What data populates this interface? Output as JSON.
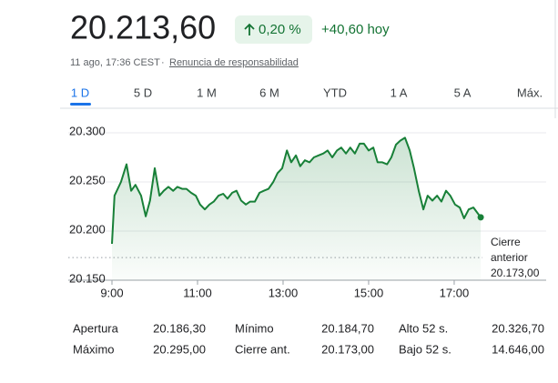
{
  "header": {
    "price": "20.213,60",
    "change_percent": "0,20 %",
    "change_today": "+40,60 hoy",
    "timestamp": "11 ago, 17:36 CEST",
    "separator": "·",
    "disclaimer": "Renuncia de responsabilidad"
  },
  "tabs": [
    "1 D",
    "5 D",
    "1 M",
    "6 M",
    "YTD",
    "1 A",
    "5 A",
    "Máx."
  ],
  "chart_data": {
    "type": "line",
    "color": "#188038",
    "x": [
      9.0,
      9.06,
      9.21,
      9.34,
      9.45,
      9.55,
      9.68,
      9.79,
      9.89,
      10.0,
      10.11,
      10.21,
      10.32,
      10.43,
      10.53,
      10.64,
      10.74,
      10.85,
      10.96,
      11.06,
      11.17,
      11.28,
      11.38,
      11.49,
      11.6,
      11.7,
      11.81,
      11.91,
      12.02,
      12.13,
      12.23,
      12.34,
      12.45,
      12.55,
      12.66,
      12.77,
      12.87,
      12.98,
      13.09,
      13.19,
      13.3,
      13.4,
      13.51,
      13.62,
      13.72,
      13.83,
      13.94,
      14.04,
      14.15,
      14.26,
      14.36,
      14.47,
      14.57,
      14.68,
      14.79,
      14.89,
      15.0,
      15.11,
      15.21,
      15.32,
      15.43,
      15.53,
      15.64,
      15.74,
      15.85,
      15.96,
      16.06,
      16.17,
      16.28,
      16.38,
      16.49,
      16.6,
      16.7,
      16.81,
      16.91,
      17.02,
      17.13,
      17.23,
      17.34,
      17.45,
      17.62
    ],
    "values": [
      20187,
      20236,
      20250,
      20268,
      20241,
      20247,
      20236,
      20215,
      20231,
      20264,
      20236,
      20241,
      20245,
      20241,
      20245,
      20243,
      20243,
      20239,
      20236,
      20227,
      20222,
      20227,
      20230,
      20236,
      20238,
      20233,
      20239,
      20241,
      20231,
      20227,
      20230,
      20230,
      20239,
      20241,
      20243,
      20250,
      20259,
      20264,
      20282,
      20270,
      20277,
      20266,
      20272,
      20270,
      20275,
      20277,
      20279,
      20282,
      20275,
      20282,
      20285,
      20279,
      20285,
      20279,
      20289,
      20289,
      20282,
      20285,
      20270,
      20270,
      20268,
      20275,
      20288,
      20292,
      20295,
      20282,
      20264,
      20241,
      20222,
      20236,
      20231,
      20236,
      20230,
      20241,
      20236,
      20227,
      20224,
      20213,
      20222,
      20224,
      20214
    ],
    "xlim": [
      8,
      19.15
    ],
    "xticks": [
      {
        "value": 9,
        "label": "9:00"
      },
      {
        "value": 11,
        "label": "11:00"
      },
      {
        "value": 13,
        "label": "13:00"
      },
      {
        "value": 15,
        "label": "15:00"
      },
      {
        "value": 17,
        "label": "17:00"
      }
    ],
    "ylim": [
      20150,
      20310
    ],
    "yticks": [
      {
        "value": 20150,
        "label": "20.150"
      },
      {
        "value": 20200,
        "label": "20.200"
      },
      {
        "value": 20250,
        "label": "20.250"
      },
      {
        "value": 20300,
        "label": "20.300"
      }
    ],
    "grid": true,
    "previous_close": {
      "label": "Cierre anterior",
      "value": 20173,
      "value_label": "20.173,00"
    }
  },
  "stats": [
    [
      "Apertura",
      "20.186,30",
      "Mínimo",
      "20.184,70",
      "Alto 52 s.",
      "20.326,70"
    ],
    [
      "Máximo",
      "20.295,00",
      "Cierre ant.",
      "20.173,00",
      "Bajo 52 s.",
      "14.646,00"
    ]
  ]
}
